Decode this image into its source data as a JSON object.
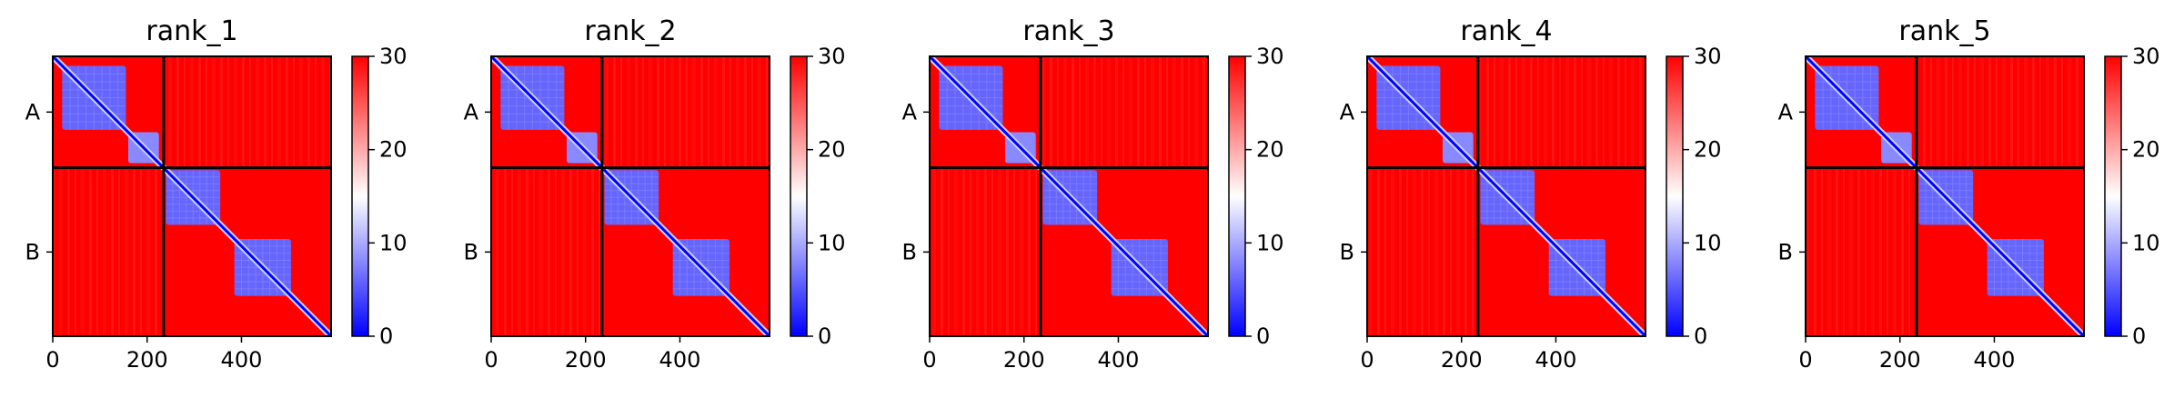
{
  "figure": {
    "panels": [
      {
        "title": "rank_1"
      },
      {
        "title": "rank_2"
      },
      {
        "title": "rank_3"
      },
      {
        "title": "rank_4"
      },
      {
        "title": "rank_5"
      }
    ]
  },
  "chart_data": {
    "type": "heatmap",
    "description": "PAE",
    "panel_titles": [
      "rank_1",
      "rank_2",
      "rank_3",
      "rank_4",
      "rank_5"
    ],
    "matrix_size": 590,
    "chain_boundary": 235,
    "chains": [
      {
        "name": "A",
        "start": 0,
        "end": 235
      },
      {
        "name": "B",
        "start": 235,
        "end": 590
      }
    ],
    "x_ticks": [
      0,
      200,
      400
    ],
    "y_tick_labels": [
      "A",
      "B"
    ],
    "colorbar": {
      "min": 0,
      "max": 30,
      "ticks": [
        0,
        10,
        20,
        30
      ],
      "colormap": [
        "#0000ff",
        "#ffffff",
        "#ff0000"
      ]
    },
    "confident_blocks": [
      {
        "start": 20,
        "end": 155,
        "value": 6
      },
      {
        "start": 160,
        "end": 225,
        "value": 8
      },
      {
        "start": 240,
        "end": 355,
        "value": 6
      },
      {
        "start": 385,
        "end": 505,
        "value": 6
      }
    ],
    "background_value": 30,
    "diagonal_value": 0,
    "grid": false
  }
}
